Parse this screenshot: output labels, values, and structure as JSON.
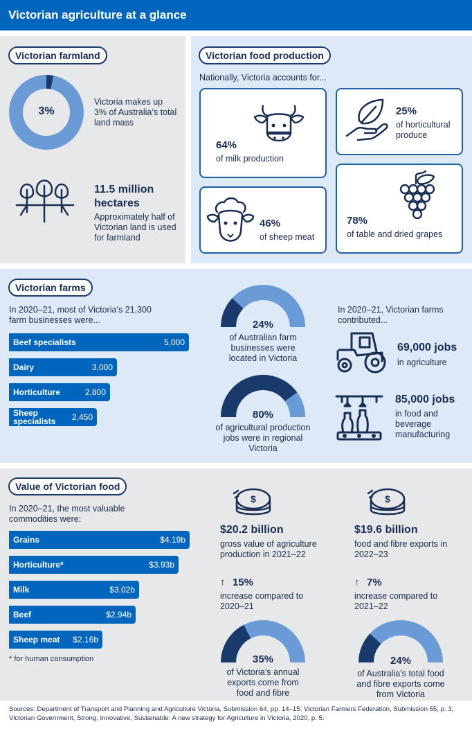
{
  "title": "Victorian agriculture at a glance",
  "farmland": {
    "heading": "Victorian farmland",
    "donut_label": "3%",
    "donut_value": 3,
    "donut_text": "Victoria makes up 3% of Australia’s total land mass",
    "hectares_big": "11.5 million hectares",
    "hectares_text": "Approximately half of Victorian land is used for farmland",
    "icon": "trees-icon"
  },
  "food_production": {
    "heading": "Victorian food production",
    "intro": "Nationally, Victoria accounts for...",
    "items": [
      {
        "pct": "64%",
        "label": "of milk production",
        "icon": "cow-icon"
      },
      {
        "pct": "25%",
        "label": "of horticultural produce",
        "icon": "hand-leaf-icon"
      },
      {
        "pct": "46%",
        "label": "of sheep meat",
        "icon": "sheep-icon"
      },
      {
        "pct": "78%",
        "label": "of table and dried grapes",
        "icon": "grapes-icon"
      }
    ]
  },
  "farms": {
    "heading": "Victorian farms",
    "intro": "In 2020–21, most of Victoria’s 21,300 farm businesses were...",
    "gauge1_label": "24%",
    "gauge1_value": 24,
    "gauge1_text": "of Australian farm businesses were located in Victoria",
    "gauge2_label": "80%",
    "gauge2_value": 80,
    "gauge2_text": "of agricultural production jobs were in regional Victoria",
    "contrib_intro": "In 2020–21, Victorian farms contributed...",
    "jobs1_big": "69,000 jobs",
    "jobs1_text": "in agriculture",
    "jobs2_big": "85,000 jobs",
    "jobs2_text": "in food and beverage manufacturing",
    "icons": [
      "tractor-icon",
      "factory-bottles-icon"
    ]
  },
  "value": {
    "heading": "Value of Victorian food",
    "intro": "In 2020–21, the most valuable commodities were:",
    "footnote": "* for human consumption",
    "stat1_big": "$20.2 billion",
    "stat1_text": "gross value of agriculture production in 2021–22",
    "stat1_change": "15%",
    "stat1_change_text": "increase compared to 2020–21",
    "stat2_big": "$19.6 billion",
    "stat2_text": "food and fibre exports in 2022–23",
    "stat2_change": "7%",
    "stat2_change_text": "increase compared to 2021–22",
    "gauge3_label": "35%",
    "gauge3_value": 35,
    "gauge3_text": "of Victoria’s annual exports come from food and fibre",
    "gauge4_label": "24%",
    "gauge4_value": 24,
    "gauge4_text": "of Australia’s total food and fibre exports come from Victoria",
    "icons": [
      "coins-icon",
      "up-arrow-icon"
    ]
  },
  "sources": "Sources: Department of Transport and Planning and Agriculture Victoria, Submission 64, pp. 14–15; Victorian Farmers Federation, Submission 55, p. 3; Victorian Government, Strong, Innovative, Sustainable: A new strategy for Agriculture in Victoria, 2020, p. 5.",
  "colors": {
    "header": "#0065bd",
    "bar": "#0065bd",
    "navy": "#1a3a6c",
    "light": "#6b9bd6"
  },
  "chart_data": [
    {
      "type": "bar",
      "categories": [
        "Beef specialists",
        "Dairy",
        "Horticulture",
        "Sheep specialists"
      ],
      "values": [
        5000,
        3000,
        2800,
        2450
      ],
      "value_labels": [
        "5,000",
        "3,000",
        "2,800",
        "2,450"
      ]
    },
    {
      "type": "bar",
      "categories": [
        "Grains",
        "Horticulture*",
        "Milk",
        "Beef",
        "Sheep meat"
      ],
      "values": [
        4.19,
        3.93,
        3.02,
        2.94,
        2.16
      ],
      "value_labels": [
        "$4.19b",
        "$3.93b",
        "$3.02b",
        "$2.94b",
        "$2.16b"
      ]
    }
  ]
}
